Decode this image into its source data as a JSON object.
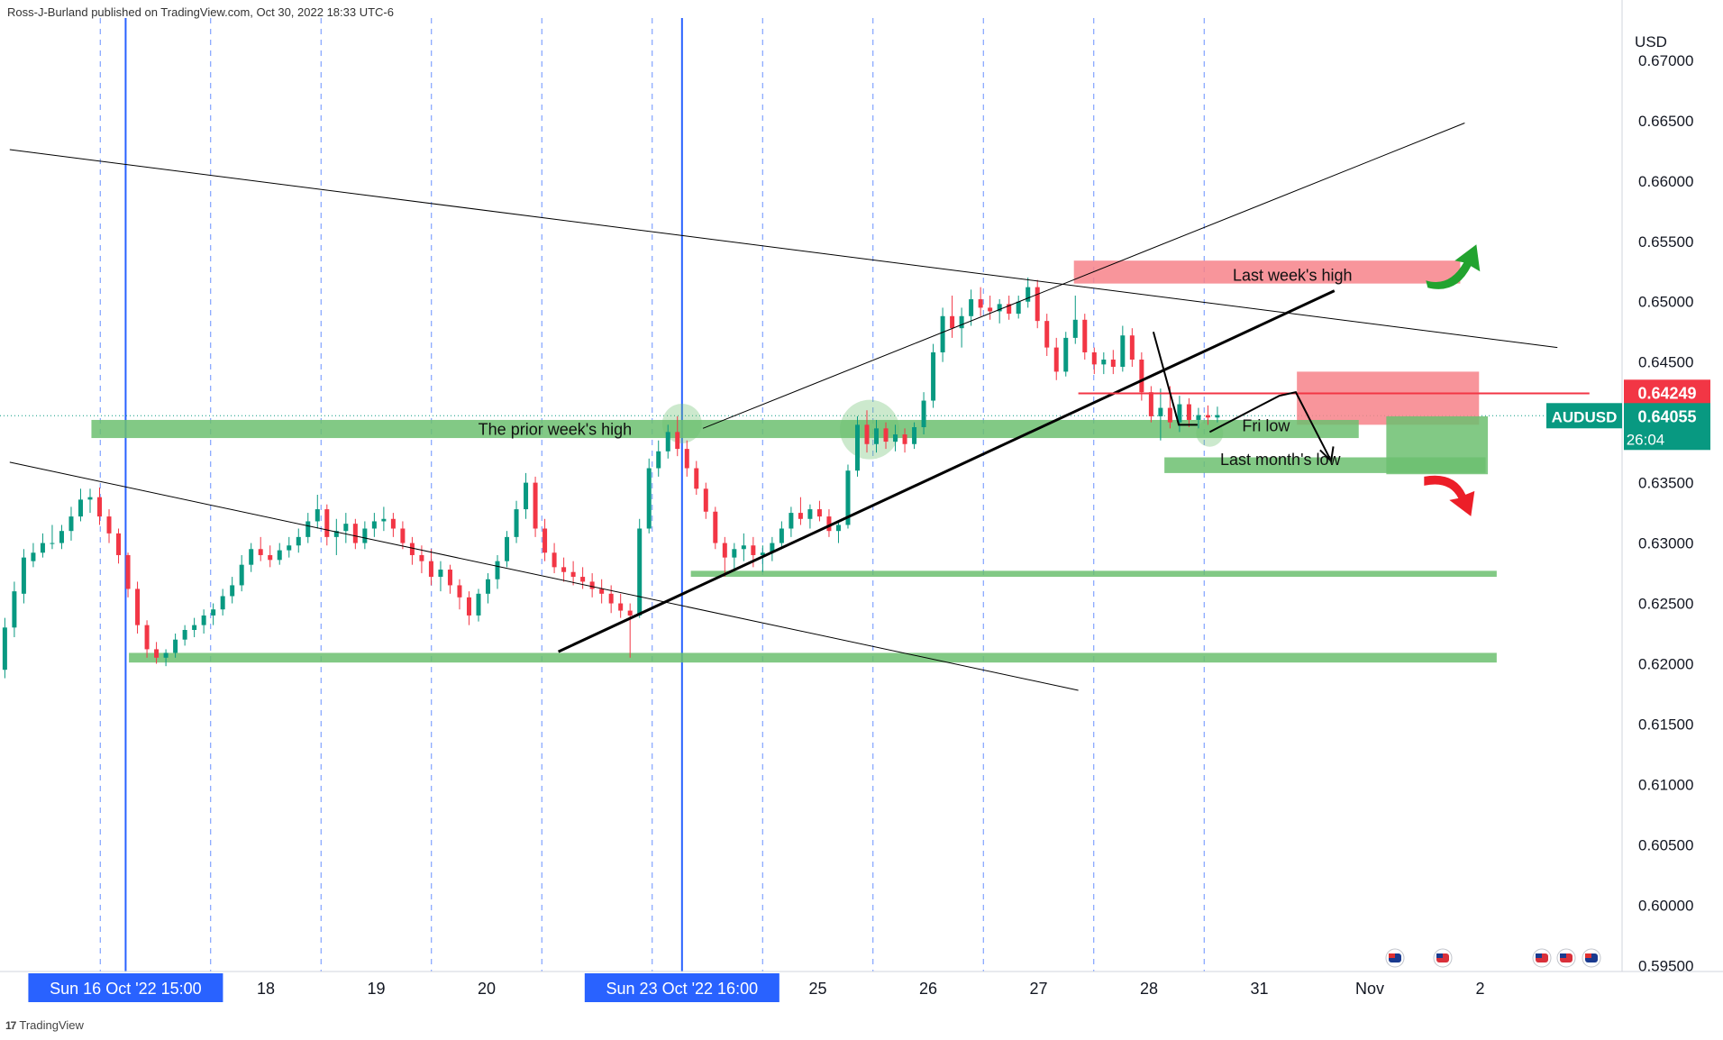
{
  "header": {
    "publisher": "Ross-J-Burland published on TradingView.com, Oct 30, 2022 18:33 UTC-6"
  },
  "footer": {
    "brand": "TradingView"
  },
  "chart_data": {
    "type": "candlestick",
    "symbol": "AUDUSD",
    "currency_label": "USD",
    "ylim": [
      0.5945,
      0.6735
    ],
    "y_ticks": [
      "0.67000",
      "0.66500",
      "0.66000",
      "0.65500",
      "0.65000",
      "0.64500",
      "0.64000",
      "0.63500",
      "0.63000",
      "0.62500",
      "0.62000",
      "0.61500",
      "0.61000",
      "0.60500",
      "0.60000",
      "0.59500"
    ],
    "x_ticks": [
      {
        "label": "Sun 16 Oct '22   15:00",
        "highlight": true,
        "day": 0.73
      },
      {
        "label": "18",
        "day": 2
      },
      {
        "label": "19",
        "day": 3
      },
      {
        "label": "20",
        "day": 4
      },
      {
        "label": "Sun 23 Oct '22   16:00",
        "highlight": true,
        "day": 5.77
      },
      {
        "label": "25",
        "day": 7
      },
      {
        "label": "26",
        "day": 8
      },
      {
        "label": "27",
        "day": 9
      },
      {
        "label": "28",
        "day": 10
      },
      {
        "label": "31",
        "day": 11
      },
      {
        "label": "Nov",
        "day": 12
      },
      {
        "label": "2",
        "day": 13
      }
    ],
    "price_labels": [
      {
        "value": "0.64249",
        "price": 0.64249,
        "color": "#f23645"
      },
      {
        "symbol": "AUDUSD",
        "value": "0.64055",
        "countdown": "26:04",
        "price": 0.64055,
        "color": "#089981"
      }
    ],
    "annotations": [
      {
        "text": "Last week's high",
        "day": 11.3,
        "price": 0.6522
      },
      {
        "text": "The prior week's high",
        "day": 4.62,
        "price": 0.6394
      },
      {
        "text": "Fri low",
        "day": 11.06,
        "price": 0.6397
      },
      {
        "text": "Last month's low",
        "day": 11.19,
        "price": 0.6369
      }
    ],
    "zones": [
      {
        "kind": "resistance",
        "color": "#f7828a",
        "x0": 9.32,
        "x1": 12.82,
        "p0": 0.6515,
        "p1": 0.6534
      },
      {
        "kind": "resistance",
        "color": "#f7828a",
        "x0": 11.34,
        "x1": 12.99,
        "p0": 0.6398,
        "p1": 0.6442
      },
      {
        "kind": "support",
        "color": "#6cc070",
        "x0": 0.42,
        "x1": 11.9,
        "p0": 0.6387,
        "p1": 0.6402
      },
      {
        "kind": "support",
        "color": "#6cc070",
        "x0": 10.14,
        "x1": 13.05,
        "p0": 0.6358,
        "p1": 0.6371
      },
      {
        "kind": "support",
        "color": "#6cc070",
        "x0": 5.85,
        "x1": 13.15,
        "p0": 0.6272,
        "p1": 0.6277
      },
      {
        "kind": "support",
        "color": "#6cc070",
        "x0": 0.76,
        "x1": 13.15,
        "p0": 0.6201,
        "p1": 0.6209
      },
      {
        "kind": "target",
        "color": "#6cc070",
        "x0": 12.15,
        "x1": 13.07,
        "p0": 0.6357,
        "p1": 0.6405
      }
    ],
    "lines": [
      {
        "x0": -0.32,
        "p0": 0.6626,
        "x1": 13.7,
        "p1": 0.6462,
        "width": 1,
        "color": "#000"
      },
      {
        "x0": -0.32,
        "p0": 0.6367,
        "x1": 9.36,
        "p1": 0.6178,
        "width": 1,
        "color": "#000"
      },
      {
        "x0": 5.96,
        "p0": 0.6395,
        "x1": 12.86,
        "p1": 0.6648,
        "width": 1,
        "color": "#000"
      },
      {
        "x0": 4.65,
        "p0": 0.621,
        "x1": 11.68,
        "p1": 0.6509,
        "width": 3,
        "color": "#000"
      },
      {
        "x0": 9.36,
        "p0": 0.6424,
        "x1": 13.99,
        "p1": 0.6424,
        "width": 2,
        "color": "#f23645"
      }
    ],
    "circles": [
      {
        "day": 5.77,
        "price": 0.6399,
        "r": 22
      },
      {
        "day": 7.47,
        "price": 0.6394,
        "r": 33
      },
      {
        "day": 10.55,
        "price": 0.6391,
        "r": 15
      }
    ],
    "arrows": [
      {
        "dir": "up",
        "color": "#22a32f",
        "day": 12.77,
        "price": 0.6522
      },
      {
        "dir": "down",
        "color": "#ec1e28",
        "day": 12.77,
        "price": 0.6352
      }
    ],
    "candles": [
      [
        0.6202,
        0.621,
        0.6172,
        0.6193
      ],
      [
        0.6195,
        0.6238,
        0.6188,
        0.623
      ],
      [
        0.623,
        0.6268,
        0.6222,
        0.626
      ],
      [
        0.6258,
        0.6295,
        0.625,
        0.6288
      ],
      [
        0.6285,
        0.63,
        0.628,
        0.6292
      ],
      [
        0.6292,
        0.6308,
        0.6288,
        0.63
      ],
      [
        0.63,
        0.6315,
        0.6295,
        0.63
      ],
      [
        0.63,
        0.6315,
        0.6295,
        0.631
      ],
      [
        0.631,
        0.633,
        0.6302,
        0.6322
      ],
      [
        0.6322,
        0.6345,
        0.6318,
        0.6336
      ],
      [
        0.6336,
        0.6345,
        0.6325,
        0.6338
      ],
      [
        0.6338,
        0.6346,
        0.6315,
        0.6322
      ],
      [
        0.6322,
        0.6328,
        0.63,
        0.6308
      ],
      [
        0.6308,
        0.6312,
        0.6283,
        0.629
      ],
      [
        0.629,
        0.6292,
        0.6255,
        0.6262
      ],
      [
        0.6262,
        0.6268,
        0.6225,
        0.6232
      ],
      [
        0.6232,
        0.6236,
        0.6205,
        0.6212
      ],
      [
        0.6212,
        0.6218,
        0.62,
        0.6205
      ],
      [
        0.6205,
        0.6212,
        0.6198,
        0.6209
      ],
      [
        0.6209,
        0.6225,
        0.6205,
        0.622
      ],
      [
        0.622,
        0.6232,
        0.6215,
        0.6228
      ],
      [
        0.6228,
        0.6238,
        0.6222,
        0.6232
      ],
      [
        0.6232,
        0.6245,
        0.6225,
        0.624
      ],
      [
        0.624,
        0.625,
        0.6232,
        0.6245
      ],
      [
        0.6245,
        0.6262,
        0.624,
        0.6256
      ],
      [
        0.6256,
        0.6272,
        0.625,
        0.6265
      ],
      [
        0.6265,
        0.629,
        0.626,
        0.6282
      ],
      [
        0.6282,
        0.63,
        0.6276,
        0.6295
      ],
      [
        0.6295,
        0.6305,
        0.6285,
        0.629
      ],
      [
        0.629,
        0.6298,
        0.628,
        0.6286
      ],
      [
        0.6286,
        0.63,
        0.6282,
        0.6294
      ],
      [
        0.6294,
        0.6305,
        0.6288,
        0.6298
      ],
      [
        0.6298,
        0.6312,
        0.6292,
        0.6305
      ],
      [
        0.6305,
        0.6325,
        0.63,
        0.6318
      ],
      [
        0.6318,
        0.634,
        0.6312,
        0.6328
      ],
      [
        0.6328,
        0.6332,
        0.6298,
        0.6305
      ],
      [
        0.6305,
        0.632,
        0.629,
        0.631
      ],
      [
        0.631,
        0.6325,
        0.63,
        0.6316
      ],
      [
        0.6316,
        0.632,
        0.6295,
        0.63
      ],
      [
        0.63,
        0.6318,
        0.6295,
        0.6312
      ],
      [
        0.6312,
        0.6325,
        0.6305,
        0.6318
      ],
      [
        0.6318,
        0.633,
        0.631,
        0.632
      ],
      [
        0.632,
        0.6325,
        0.6305,
        0.6312
      ],
      [
        0.6312,
        0.6318,
        0.6295,
        0.63
      ],
      [
        0.63,
        0.6305,
        0.6282,
        0.629
      ],
      [
        0.629,
        0.6298,
        0.6275,
        0.6285
      ],
      [
        0.6285,
        0.6295,
        0.6265,
        0.6272
      ],
      [
        0.6272,
        0.6285,
        0.626,
        0.6278
      ],
      [
        0.6278,
        0.6282,
        0.6258,
        0.6265
      ],
      [
        0.6265,
        0.627,
        0.6245,
        0.6255
      ],
      [
        0.6255,
        0.626,
        0.6232,
        0.624
      ],
      [
        0.624,
        0.6262,
        0.6235,
        0.6258
      ],
      [
        0.6258,
        0.6275,
        0.625,
        0.627
      ],
      [
        0.627,
        0.629,
        0.6262,
        0.6285
      ],
      [
        0.6285,
        0.631,
        0.628,
        0.6305
      ],
      [
        0.6305,
        0.6335,
        0.63,
        0.6328
      ],
      [
        0.6328,
        0.6358,
        0.632,
        0.635
      ],
      [
        0.635,
        0.6355,
        0.6305,
        0.6312
      ],
      [
        0.6312,
        0.632,
        0.6285,
        0.6292
      ],
      [
        0.6292,
        0.63,
        0.6275,
        0.628
      ],
      [
        0.628,
        0.6288,
        0.6268,
        0.6276
      ],
      [
        0.6276,
        0.6285,
        0.6265,
        0.6272
      ],
      [
        0.6272,
        0.628,
        0.6262,
        0.6268
      ],
      [
        0.6268,
        0.6275,
        0.6255,
        0.6262
      ],
      [
        0.6262,
        0.627,
        0.625,
        0.6258
      ],
      [
        0.6258,
        0.6265,
        0.6242,
        0.625
      ],
      [
        0.625,
        0.6258,
        0.6238,
        0.6244
      ],
      [
        0.6244,
        0.625,
        0.6205,
        0.624
      ],
      [
        0.624,
        0.632,
        0.6238,
        0.6312
      ],
      [
        0.6312,
        0.637,
        0.6308,
        0.6362
      ],
      [
        0.6362,
        0.6385,
        0.6355,
        0.6376
      ],
      [
        0.6376,
        0.6398,
        0.637,
        0.6392
      ],
      [
        0.6392,
        0.6405,
        0.6372,
        0.6378
      ],
      [
        0.6378,
        0.6385,
        0.6355,
        0.6362
      ],
      [
        0.6362,
        0.6368,
        0.634,
        0.6345
      ],
      [
        0.6345,
        0.635,
        0.632,
        0.6326
      ],
      [
        0.6326,
        0.633,
        0.6295,
        0.63
      ],
      [
        0.63,
        0.6305,
        0.6272,
        0.6288
      ],
      [
        0.6288,
        0.63,
        0.6278,
        0.6295
      ],
      [
        0.6295,
        0.6308,
        0.6285,
        0.6298
      ],
      [
        0.6298,
        0.6305,
        0.628,
        0.629
      ],
      [
        0.629,
        0.6298,
        0.6276,
        0.6292
      ],
      [
        0.6292,
        0.6305,
        0.6285,
        0.63
      ],
      [
        0.63,
        0.6318,
        0.6295,
        0.6312
      ],
      [
        0.6312,
        0.633,
        0.6305,
        0.6325
      ],
      [
        0.6325,
        0.6338,
        0.6315,
        0.632
      ],
      [
        0.632,
        0.6332,
        0.6312,
        0.6328
      ],
      [
        0.6328,
        0.6335,
        0.6318,
        0.6322
      ],
      [
        0.6322,
        0.6328,
        0.6305,
        0.631
      ],
      [
        0.631,
        0.6318,
        0.63,
        0.6315
      ],
      [
        0.6315,
        0.6365,
        0.6312,
        0.636
      ],
      [
        0.636,
        0.6405,
        0.6355,
        0.6398
      ],
      [
        0.6398,
        0.641,
        0.6375,
        0.6382
      ],
      [
        0.6382,
        0.6402,
        0.6375,
        0.6395
      ],
      [
        0.6395,
        0.64,
        0.6378,
        0.6384
      ],
      [
        0.6384,
        0.6398,
        0.6376,
        0.639
      ],
      [
        0.639,
        0.6395,
        0.6375,
        0.6382
      ],
      [
        0.6382,
        0.64,
        0.6378,
        0.6396
      ],
      [
        0.6396,
        0.6425,
        0.639,
        0.6418
      ],
      [
        0.6418,
        0.6465,
        0.6412,
        0.6458
      ],
      [
        0.6458,
        0.6495,
        0.645,
        0.6488
      ],
      [
        0.6488,
        0.6505,
        0.647,
        0.6478
      ],
      [
        0.6478,
        0.6495,
        0.6462,
        0.6488
      ],
      [
        0.6488,
        0.651,
        0.648,
        0.6502
      ],
      [
        0.6502,
        0.6512,
        0.6488,
        0.6495
      ],
      [
        0.6495,
        0.6505,
        0.6485,
        0.6492
      ],
      [
        0.6492,
        0.6502,
        0.6482,
        0.6498
      ],
      [
        0.6498,
        0.6505,
        0.6485,
        0.649
      ],
      [
        0.649,
        0.6505,
        0.6486,
        0.65
      ],
      [
        0.65,
        0.652,
        0.6495,
        0.6512
      ],
      [
        0.6512,
        0.6518,
        0.6478,
        0.6484
      ],
      [
        0.6484,
        0.649,
        0.6455,
        0.6462
      ],
      [
        0.6462,
        0.647,
        0.6435,
        0.6442
      ],
      [
        0.6442,
        0.6475,
        0.6438,
        0.647
      ],
      [
        0.647,
        0.6505,
        0.6465,
        0.6485
      ],
      [
        0.6485,
        0.649,
        0.6452,
        0.6458
      ],
      [
        0.6458,
        0.6462,
        0.644,
        0.6448
      ],
      [
        0.6448,
        0.6458,
        0.644,
        0.6452
      ],
      [
        0.6452,
        0.646,
        0.644,
        0.6446
      ],
      [
        0.6446,
        0.648,
        0.6442,
        0.6472
      ],
      [
        0.6472,
        0.6478,
        0.6446,
        0.6452
      ],
      [
        0.6452,
        0.6458,
        0.6418,
        0.6425
      ],
      [
        0.6425,
        0.643,
        0.64,
        0.6405
      ],
      [
        0.6405,
        0.6428,
        0.6385,
        0.6412
      ],
      [
        0.6412,
        0.643,
        0.6395,
        0.64
      ],
      [
        0.64,
        0.6422,
        0.6392,
        0.6415
      ],
      [
        0.6415,
        0.642,
        0.6396,
        0.6402
      ],
      [
        0.6402,
        0.6412,
        0.6395,
        0.6406
      ],
      [
        0.6406,
        0.6414,
        0.6398,
        0.6404
      ],
      [
        0.6404,
        0.6413,
        0.64,
        0.6406
      ]
    ]
  }
}
